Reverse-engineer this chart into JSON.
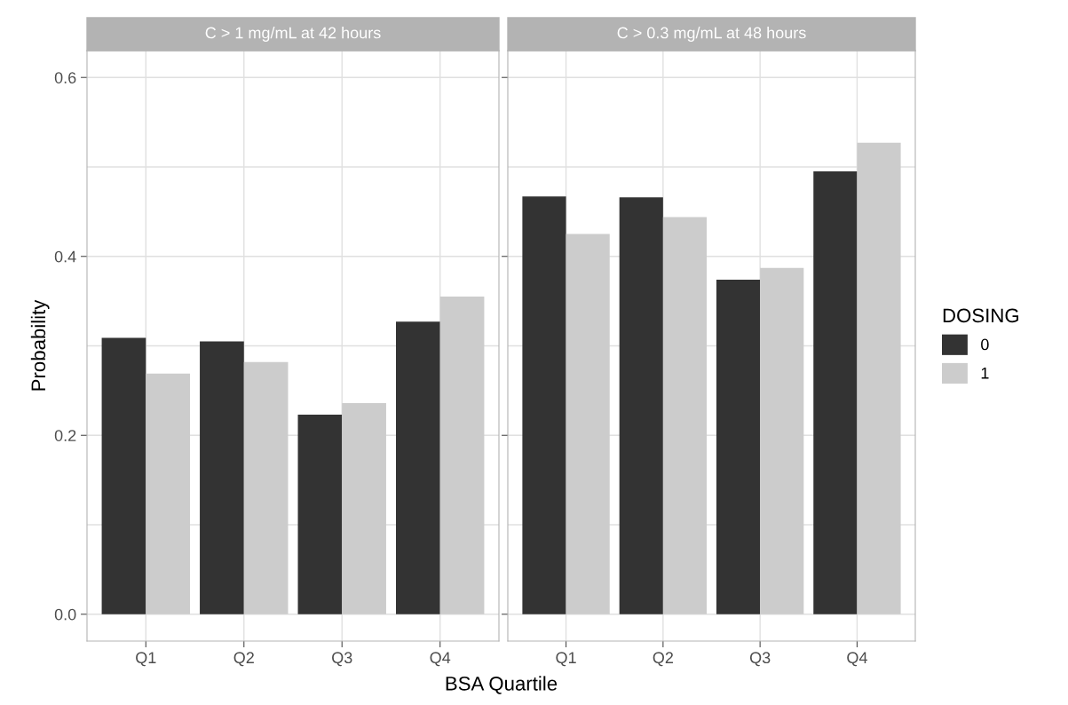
{
  "chart_data": [
    {
      "type": "bar",
      "title": "C > 1 mg/mL at 42 hours",
      "xlabel": "BSA Quartile",
      "ylabel": "Probability",
      "categories": [
        "Q1",
        "Q2",
        "Q3",
        "Q4"
      ],
      "series": [
        {
          "color": "#333333",
          "values": [
            0.309,
            0.305,
            0.223,
            0.327
          ]
        },
        {
          "color": "#cccccc",
          "values": [
            0.269,
            0.282,
            0.236,
            0.355
          ]
        }
      ],
      "ylim": [
        -0.03,
        0.63
      ],
      "yticks": [
        {
          "value": 0,
          "label": "0.0"
        },
        0.2,
        0.4,
        0.6
      ],
      "grid": true
    },
    {
      "type": "bar",
      "title": "C > 0.3 mg/mL at 48 hours",
      "categories": [
        "Q1",
        "Q2",
        "Q3",
        "Q4"
      ],
      "series": [
        {
          "name": "0",
          "color": "#333333",
          "values": [
            0.467,
            0.466,
            0.374,
            0.495
          ]
        },
        {
          "name": "1",
          "color": "#cccccc",
          "values": [
            0.425,
            0.444,
            0.387,
            0.527
          ]
        }
      ],
      "ylim": [
        -0.03,
        0.63
      ],
      "yticks": [
        0,
        0.2,
        0.4,
        0.6
      ],
      "grid": true,
      "tick_labels": "x",
      "legend": "right",
      "legend_title": "DOSING"
    }
  ]
}
